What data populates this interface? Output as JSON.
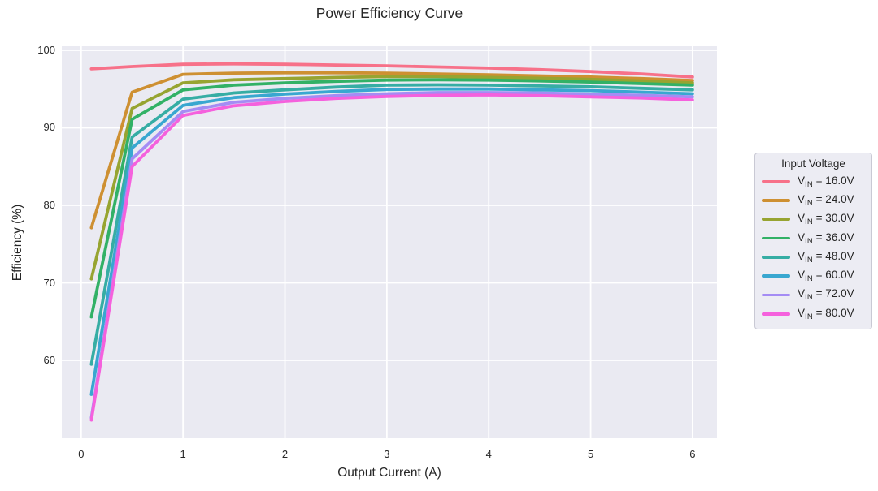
{
  "figure": {
    "title": "Power Efficiency Curve",
    "xlabel": "Output Current (A)",
    "ylabel": "Efficiency (%)"
  },
  "legend": {
    "title": "Input Voltage"
  },
  "colors": {
    "plot_background": "#eaeaf2",
    "gridline": "#ffffff",
    "text": "#262626",
    "legend_border": "#c9c9d4"
  },
  "chart_data": {
    "type": "line",
    "title": "Power Efficiency Curve",
    "xlabel": "Output Current (A)",
    "ylabel": "Efficiency (%)",
    "grid": true,
    "legend_title": "Input Voltage",
    "legend_position": "outside-right",
    "xlim": [
      -0.19,
      6.24
    ],
    "ylim": [
      49.95,
      100.52
    ],
    "x_ticks": [
      0,
      1,
      2,
      3,
      4,
      5,
      6
    ],
    "y_ticks": [
      60,
      70,
      80,
      90,
      100
    ],
    "x": [
      0.1,
      0.5,
      1,
      1.5,
      2,
      2.5,
      3,
      3.5,
      4,
      4.5,
      5,
      5.5,
      6
    ],
    "series": [
      {
        "label": "VIN = 16.0V",
        "label_parts": {
          "base": "V",
          "sub": "IN",
          "rest": " = 16.0V"
        },
        "color": "#f77189",
        "values": [
          97.6,
          97.9,
          98.2,
          98.25,
          98.2,
          98.1,
          98.0,
          97.85,
          97.7,
          97.5,
          97.25,
          96.95,
          96.55
        ]
      },
      {
        "label": "VIN = 24.0V",
        "label_parts": {
          "base": "V",
          "sub": "IN",
          "rest": " = 24.0V"
        },
        "color": "#ce9032",
        "values": [
          77.1,
          94.6,
          96.9,
          97.05,
          97.1,
          97.1,
          97.05,
          96.95,
          96.85,
          96.7,
          96.55,
          96.35,
          96.1
        ]
      },
      {
        "label": "VIN = 30.0V",
        "label_parts": {
          "base": "V",
          "sub": "IN",
          "rest": " = 30.0V"
        },
        "color": "#97a431",
        "values": [
          70.5,
          92.5,
          95.8,
          96.2,
          96.35,
          96.5,
          96.6,
          96.6,
          96.5,
          96.4,
          96.25,
          96.05,
          95.8
        ]
      },
      {
        "label": "VIN = 36.0V",
        "label_parts": {
          "base": "V",
          "sub": "IN",
          "rest": " = 36.0V"
        },
        "color": "#32b166",
        "values": [
          65.6,
          91.1,
          94.9,
          95.5,
          95.8,
          96.0,
          96.15,
          96.2,
          96.15,
          96.05,
          95.9,
          95.7,
          95.5
        ]
      },
      {
        "label": "VIN = 48.0V",
        "label_parts": {
          "base": "V",
          "sub": "IN",
          "rest": " = 48.0V"
        },
        "color": "#36ada4",
        "values": [
          59.5,
          88.8,
          93.7,
          94.5,
          94.9,
          95.25,
          95.5,
          95.55,
          95.5,
          95.4,
          95.3,
          95.1,
          94.9
        ]
      },
      {
        "label": "VIN = 60.0V",
        "label_parts": {
          "base": "V",
          "sub": "IN",
          "rest": " = 60.0V"
        },
        "color": "#39a7d0",
        "values": [
          55.6,
          87.4,
          92.9,
          93.9,
          94.35,
          94.7,
          94.95,
          95.0,
          95.0,
          94.9,
          94.8,
          94.6,
          94.4
        ]
      },
      {
        "label": "VIN = 72.0V",
        "label_parts": {
          "base": "V",
          "sub": "IN",
          "rest": " = 72.0V"
        },
        "color": "#a48cf4",
        "values": [
          52.6,
          86.0,
          92.1,
          93.3,
          93.8,
          94.15,
          94.4,
          94.55,
          94.55,
          94.5,
          94.35,
          94.2,
          94.0
        ]
      },
      {
        "label": "VIN = 80.0V",
        "label_parts": {
          "base": "V",
          "sub": "IN",
          "rest": " = 80.0V"
        },
        "color": "#f561dd",
        "values": [
          52.3,
          85.0,
          91.6,
          92.85,
          93.4,
          93.8,
          94.05,
          94.2,
          94.25,
          94.15,
          94.0,
          93.85,
          93.6
        ]
      }
    ]
  }
}
